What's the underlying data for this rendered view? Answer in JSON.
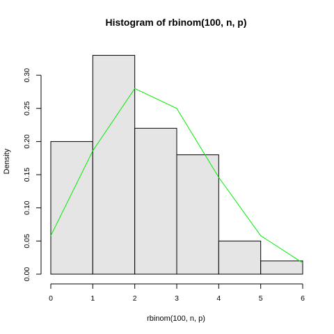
{
  "chart_data": {
    "type": "bar",
    "title": "Histogram of rbinom(100, n, p)",
    "xlabel": "rbinom(100, n, p)",
    "ylabel": "Density",
    "bins": [
      {
        "x0": 0,
        "x1": 1,
        "density": 0.2
      },
      {
        "x0": 1,
        "x1": 2,
        "density": 0.33
      },
      {
        "x0": 2,
        "x1": 3,
        "density": 0.22
      },
      {
        "x0": 3,
        "x1": 4,
        "density": 0.18
      },
      {
        "x0": 4,
        "x1": 5,
        "density": 0.05
      },
      {
        "x0": 5,
        "x1": 6,
        "density": 0.02
      }
    ],
    "line": {
      "x": [
        0,
        1,
        2,
        3,
        4,
        5,
        6
      ],
      "y": [
        0.058,
        0.186,
        0.28,
        0.25,
        0.146,
        0.058,
        0.017
      ]
    },
    "xlim": [
      0,
      6
    ],
    "ylim": [
      0,
      0.34
    ],
    "xticks": [
      "0",
      "1",
      "2",
      "3",
      "4",
      "5",
      "6"
    ],
    "yticks": [
      "0.00",
      "0.05",
      "0.10",
      "0.15",
      "0.20",
      "0.25",
      "0.30"
    ],
    "grid": false,
    "colors": {
      "bar_fill": "#e5e5e5",
      "bar_stroke": "#000000",
      "line": "#00ee00",
      "axis": "#000000"
    }
  }
}
